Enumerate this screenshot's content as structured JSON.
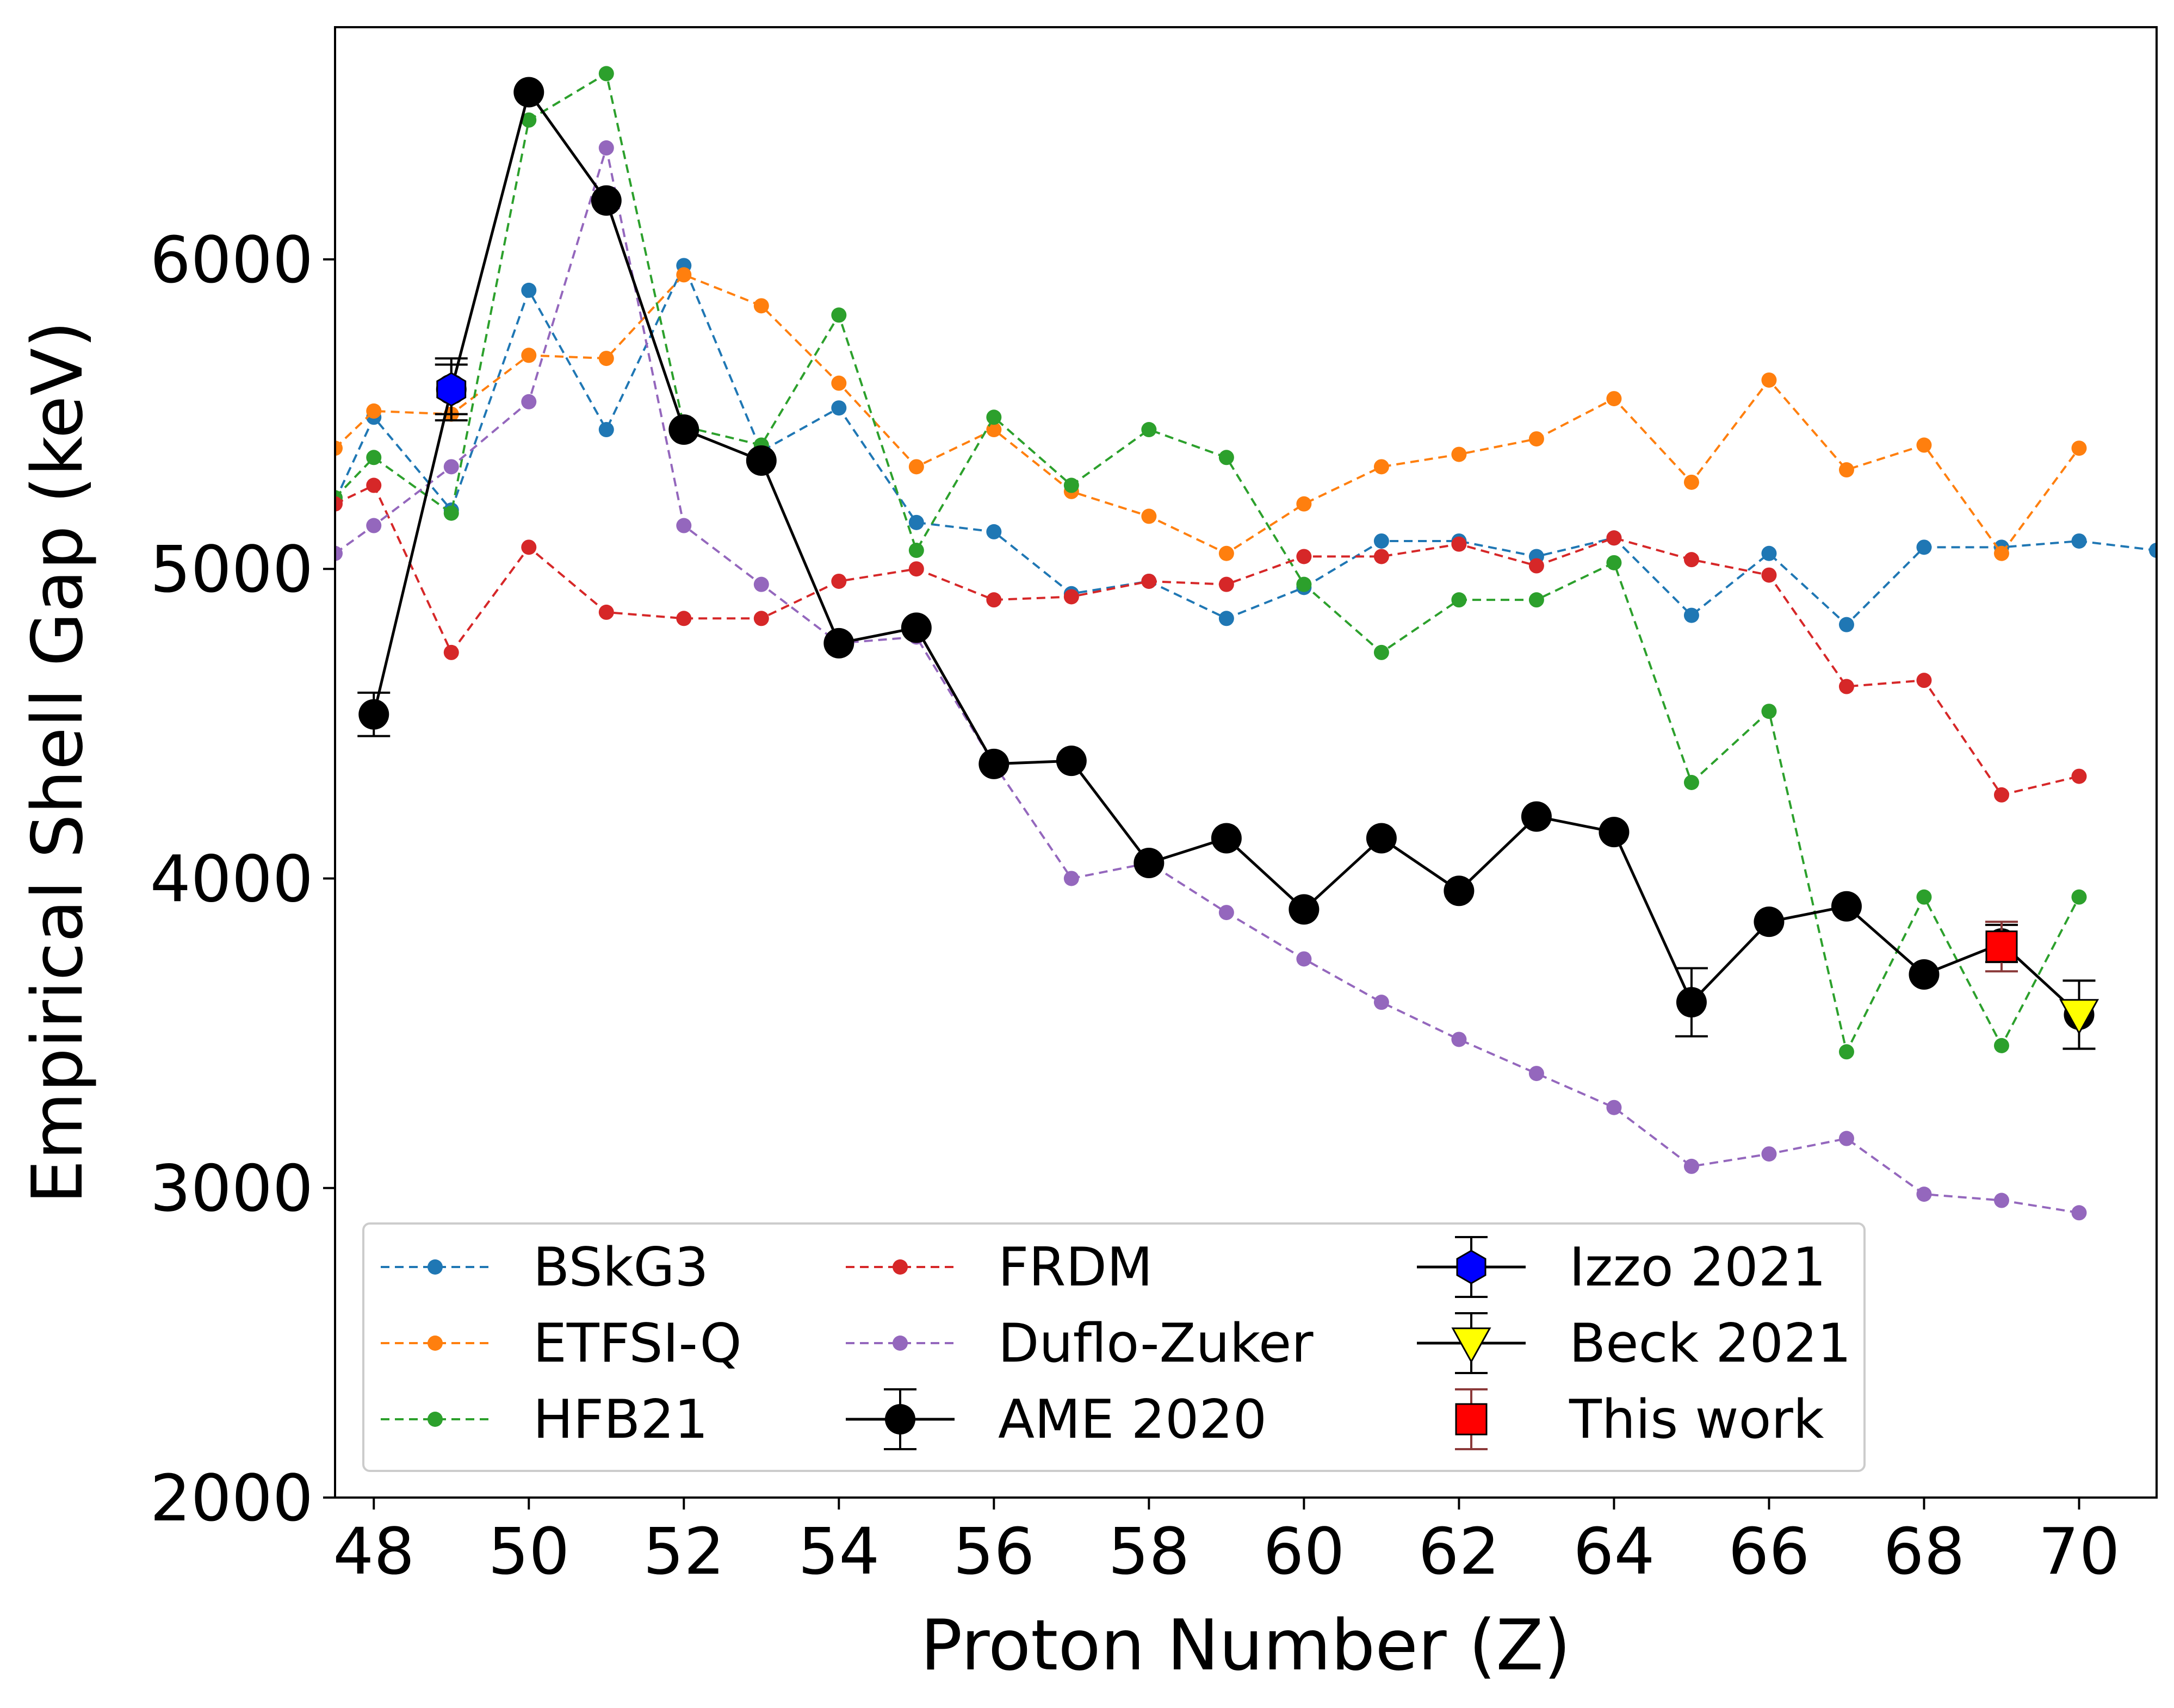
{
  "chart_data": {
    "type": "line",
    "xlabel": "Proton Number (Z)",
    "ylabel": "Empirical Shell Gap (keV)",
    "xlim": [
      47.5,
      71.0
    ],
    "ylim": [
      2000,
      6750
    ],
    "xticks": [
      48,
      50,
      52,
      54,
      56,
      58,
      60,
      62,
      64,
      66,
      68,
      70
    ],
    "yticks": [
      2000,
      3000,
      4000,
      5000,
      6000
    ],
    "legend_position": "lower-left",
    "series": [
      {
        "name": "BSkG3",
        "color": "#1f77b4",
        "style": "dashed",
        "marker": "dot",
        "x": [
          47.5,
          48,
          49,
          50,
          51,
          52,
          53,
          54,
          55,
          56,
          57,
          58,
          59,
          60,
          61,
          62,
          63,
          64,
          65,
          66,
          67,
          68,
          69,
          70,
          71
        ],
        "y": [
          5220,
          5490,
          5190,
          5900,
          5450,
          5980,
          5380,
          5520,
          5150,
          5120,
          4920,
          4960,
          4840,
          4940,
          5090,
          5090,
          5040,
          5100,
          4850,
          5050,
          4820,
          5070,
          5070,
          5090,
          5060
        ]
      },
      {
        "name": "ETFSI-Q",
        "color": "#ff7f0e",
        "style": "dashed",
        "marker": "dot",
        "x": [
          47.5,
          48,
          49,
          50,
          51,
          52,
          53,
          54,
          55,
          56,
          57,
          58,
          59,
          60,
          61,
          62,
          63,
          64,
          65,
          66,
          67,
          68,
          69,
          70
        ],
        "y": [
          5390,
          5510,
          5500,
          5690,
          5680,
          5950,
          5850,
          5600,
          5330,
          5450,
          5250,
          5170,
          5050,
          5210,
          5330,
          5370,
          5420,
          5550,
          5280,
          5610,
          5320,
          5400,
          5050,
          5390
        ]
      },
      {
        "name": "HFB21",
        "color": "#2ca02c",
        "style": "dashed",
        "marker": "dot",
        "x": [
          47.5,
          48,
          49,
          50,
          51,
          52,
          53,
          54,
          55,
          56,
          57,
          58,
          59,
          60,
          61,
          62,
          63,
          64,
          65,
          66,
          67,
          68,
          69,
          70
        ],
        "y": [
          5230,
          5360,
          5180,
          6450,
          6600,
          5460,
          5400,
          5820,
          5060,
          5490,
          5270,
          5450,
          5360,
          4950,
          4730,
          4900,
          4900,
          5020,
          4310,
          4540,
          3440,
          3940,
          3460,
          3940
        ]
      },
      {
        "name": "FRDM",
        "color": "#d62728",
        "style": "dashed",
        "marker": "dot",
        "x": [
          47.5,
          48,
          49,
          50,
          51,
          52,
          53,
          54,
          55,
          56,
          57,
          58,
          59,
          60,
          61,
          62,
          63,
          64,
          65,
          66,
          67,
          68,
          69,
          70
        ],
        "y": [
          5210,
          5270,
          4730,
          5070,
          4860,
          4840,
          4840,
          4960,
          5000,
          4900,
          4910,
          4960,
          4950,
          5040,
          5040,
          5080,
          5010,
          5100,
          5030,
          4980,
          4620,
          4640,
          4270,
          4330
        ]
      },
      {
        "name": "Duflo-Zuker",
        "color": "#9467bd",
        "style": "dashed",
        "marker": "dot",
        "x": [
          47.5,
          48,
          49,
          50,
          51,
          52,
          53,
          54,
          55,
          56,
          57,
          58,
          59,
          60,
          61,
          62,
          63,
          64,
          65,
          66,
          67,
          68,
          69,
          70
        ],
        "y": [
          5050,
          5140,
          5330,
          5540,
          6360,
          5140,
          4950,
          4760,
          4780,
          4370,
          4000,
          4050,
          3890,
          3740,
          3600,
          3480,
          3370,
          3260,
          3070,
          3110,
          3160,
          2980,
          2960,
          2920
        ]
      },
      {
        "name": "AME 2020",
        "color": "#000000",
        "style": "solid",
        "marker": "circle",
        "x": [
          48,
          49,
          50,
          51,
          52,
          53,
          54,
          55,
          56,
          57,
          58,
          59,
          60,
          61,
          62,
          63,
          64,
          65,
          66,
          67,
          68,
          69,
          70
        ],
        "y": [
          4530,
          5580,
          6540,
          6190,
          5450,
          5350,
          4760,
          4810,
          4370,
          4380,
          4050,
          4130,
          3900,
          4130,
          3960,
          4200,
          4150,
          3600,
          3860,
          3910,
          3690,
          3790,
          3560
        ],
        "yerr": [
          70,
          80,
          0,
          0,
          0,
          0,
          0,
          0,
          0,
          0,
          0,
          0,
          0,
          0,
          0,
          0,
          0,
          110,
          0,
          0,
          0,
          60,
          110
        ]
      },
      {
        "name": "Izzo 2021",
        "color": "#0000ff",
        "style": "none",
        "marker": "hexagon",
        "x": [
          49
        ],
        "y": [
          5580
        ],
        "yerr": [
          100
        ]
      },
      {
        "name": "Beck 2021",
        "color": "#ffff00",
        "style": "none",
        "marker": "triangle-down",
        "x": [
          70
        ],
        "y": [
          3560
        ],
        "yerr": [
          110
        ]
      },
      {
        "name": "This work",
        "color": "#ff0000",
        "style": "none",
        "marker": "square",
        "x": [
          69
        ],
        "y": [
          3780
        ],
        "yerr": [
          80
        ]
      }
    ]
  }
}
